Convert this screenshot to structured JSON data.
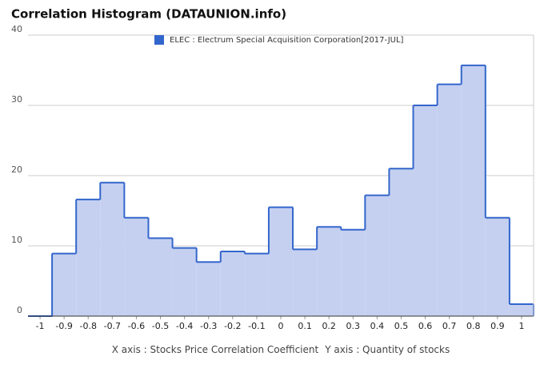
{
  "chart_data": {
    "type": "step-area",
    "title": "Correlation Histogram (DATAUNION.info)",
    "x_label": "X axis : Stocks Price Correlation Coefficient",
    "y_label": "Y axis : Quantity of stocks",
    "x": [
      -1,
      -0.9,
      -0.8,
      -0.7,
      -0.6,
      -0.5,
      -0.4,
      -0.3,
      -0.2,
      -0.1,
      0,
      0.1,
      0.2,
      0.3,
      0.4,
      0.5,
      0.6,
      0.7,
      0.8,
      0.9,
      1
    ],
    "series": [
      {
        "name": "ELEC : Electrum Special Acquisition Corporation[2017-JUL]",
        "color": "#3366cc",
        "values": [
          0,
          8.9,
          16.6,
          19.0,
          14.0,
          11.1,
          9.7,
          7.7,
          9.2,
          8.9,
          15.5,
          9.5,
          12.7,
          12.3,
          17.2,
          21.0,
          30.0,
          33.0,
          35.7,
          14.0,
          1.7
        ]
      }
    ],
    "xlim": [
      -1.05,
      1.05
    ],
    "xticks": [
      -1,
      -0.9,
      -0.8,
      -0.7,
      -0.6,
      -0.5,
      -0.4,
      -0.3,
      -0.2,
      -0.1,
      0,
      0.1,
      0.2,
      0.3,
      0.4,
      0.5,
      0.6,
      0.7,
      0.8,
      0.9,
      1
    ],
    "ylim": [
      0,
      40
    ],
    "yticks": [
      0,
      10,
      20,
      30,
      40
    ],
    "grid": true,
    "legend": "top"
  }
}
